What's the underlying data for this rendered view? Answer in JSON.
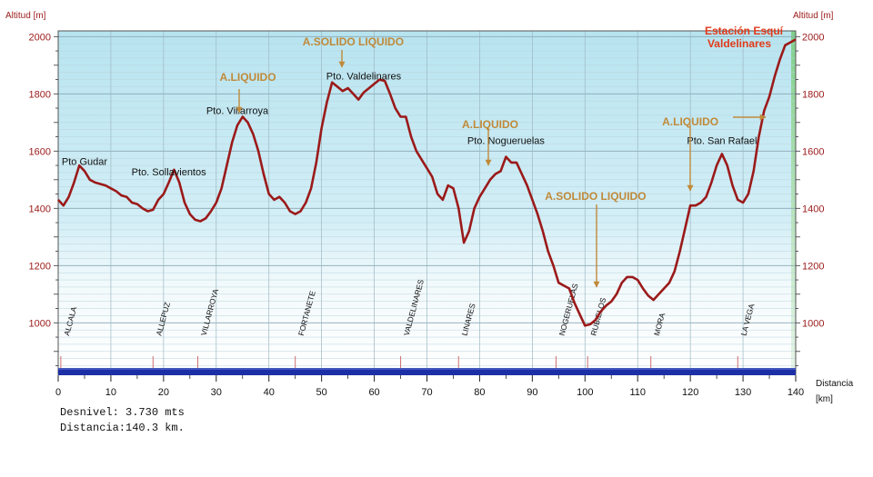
{
  "chart_data": {
    "type": "line",
    "y_axis_label_left": "Altitud [m]",
    "y_axis_label_right": "Altitud [m]",
    "x_axis_label_1": "Distancia",
    "x_axis_label_2": "[km]",
    "xlim": [
      0,
      140
    ],
    "ylim": [
      820,
      2020
    ],
    "x_ticks": [
      "0",
      "10",
      "20",
      "30",
      "40",
      "50",
      "60",
      "70",
      "80",
      "90",
      "100",
      "110",
      "120",
      "130",
      "140"
    ],
    "y_ticks": [
      "1000",
      "1200",
      "1400",
      "1600",
      "1800",
      "2000"
    ],
    "grid": true,
    "series": [
      {
        "color": "#9b1a1a",
        "points": [
          [
            0,
            1430
          ],
          [
            1,
            1410
          ],
          [
            2,
            1440
          ],
          [
            3,
            1490
          ],
          [
            4,
            1550
          ],
          [
            5,
            1530
          ],
          [
            6,
            1500
          ],
          [
            7,
            1490
          ],
          [
            8,
            1485
          ],
          [
            9,
            1480
          ],
          [
            10,
            1470
          ],
          [
            11,
            1460
          ],
          [
            12,
            1445
          ],
          [
            13,
            1440
          ],
          [
            14,
            1420
          ],
          [
            15,
            1415
          ],
          [
            16,
            1400
          ],
          [
            17,
            1390
          ],
          [
            18,
            1395
          ],
          [
            19,
            1430
          ],
          [
            20,
            1450
          ],
          [
            21,
            1490
          ],
          [
            22,
            1535
          ],
          [
            23,
            1490
          ],
          [
            24,
            1420
          ],
          [
            25,
            1380
          ],
          [
            26,
            1360
          ],
          [
            27,
            1355
          ],
          [
            28,
            1365
          ],
          [
            29,
            1390
          ],
          [
            30,
            1420
          ],
          [
            31,
            1470
          ],
          [
            32,
            1550
          ],
          [
            33,
            1630
          ],
          [
            34,
            1690
          ],
          [
            35,
            1720
          ],
          [
            36,
            1700
          ],
          [
            37,
            1660
          ],
          [
            38,
            1600
          ],
          [
            39,
            1520
          ],
          [
            40,
            1450
          ],
          [
            41,
            1430
          ],
          [
            42,
            1440
          ],
          [
            43,
            1420
          ],
          [
            44,
            1390
          ],
          [
            45,
            1380
          ],
          [
            46,
            1390
          ],
          [
            47,
            1420
          ],
          [
            48,
            1470
          ],
          [
            49,
            1560
          ],
          [
            50,
            1680
          ],
          [
            51,
            1770
          ],
          [
            52,
            1840
          ],
          [
            53,
            1825
          ],
          [
            54,
            1810
          ],
          [
            55,
            1820
          ],
          [
            56,
            1800
          ],
          [
            57,
            1780
          ],
          [
            58,
            1805
          ],
          [
            59,
            1820
          ],
          [
            60,
            1835
          ],
          [
            61,
            1850
          ],
          [
            62,
            1845
          ],
          [
            63,
            1800
          ],
          [
            64,
            1750
          ],
          [
            65,
            1720
          ],
          [
            66,
            1720
          ],
          [
            67,
            1650
          ],
          [
            68,
            1600
          ],
          [
            69,
            1570
          ],
          [
            70,
            1540
          ],
          [
            71,
            1510
          ],
          [
            72,
            1450
          ],
          [
            73,
            1430
          ],
          [
            74,
            1480
          ],
          [
            75,
            1470
          ],
          [
            76,
            1400
          ],
          [
            77,
            1280
          ],
          [
            78,
            1320
          ],
          [
            79,
            1400
          ],
          [
            80,
            1440
          ],
          [
            81,
            1470
          ],
          [
            82,
            1500
          ],
          [
            83,
            1520
          ],
          [
            84,
            1530
          ],
          [
            85,
            1580
          ],
          [
            86,
            1560
          ],
          [
            87,
            1560
          ],
          [
            88,
            1520
          ],
          [
            89,
            1480
          ],
          [
            90,
            1430
          ],
          [
            91,
            1380
          ],
          [
            92,
            1320
          ],
          [
            93,
            1250
          ],
          [
            94,
            1200
          ],
          [
            95,
            1140
          ],
          [
            96,
            1130
          ],
          [
            97,
            1120
          ],
          [
            98,
            1070
          ],
          [
            99,
            1030
          ],
          [
            100,
            990
          ],
          [
            101,
            995
          ],
          [
            102,
            1010
          ],
          [
            103,
            1040
          ],
          [
            104,
            1060
          ],
          [
            105,
            1075
          ],
          [
            106,
            1100
          ],
          [
            107,
            1140
          ],
          [
            108,
            1160
          ],
          [
            109,
            1160
          ],
          [
            110,
            1150
          ],
          [
            111,
            1120
          ],
          [
            112,
            1095
          ],
          [
            113,
            1080
          ],
          [
            114,
            1100
          ],
          [
            115,
            1120
          ],
          [
            116,
            1140
          ],
          [
            117,
            1180
          ],
          [
            118,
            1250
          ],
          [
            119,
            1330
          ],
          [
            120,
            1410
          ],
          [
            121,
            1410
          ],
          [
            122,
            1420
          ],
          [
            123,
            1440
          ],
          [
            124,
            1490
          ],
          [
            125,
            1550
          ],
          [
            126,
            1590
          ],
          [
            127,
            1550
          ],
          [
            128,
            1480
          ],
          [
            129,
            1430
          ],
          [
            130,
            1420
          ],
          [
            131,
            1450
          ],
          [
            132,
            1530
          ],
          [
            133,
            1650
          ],
          [
            134,
            1740
          ],
          [
            135,
            1790
          ],
          [
            136,
            1860
          ],
          [
            137,
            1920
          ],
          [
            138,
            1970
          ],
          [
            139,
            1980
          ],
          [
            140,
            1990
          ]
        ]
      }
    ],
    "towns": [
      {
        "name": "ALCALA",
        "x": 0.5
      },
      {
        "name": "ALLEPUZ",
        "x": 18
      },
      {
        "name": "VILLARROYA",
        "x": 26.5
      },
      {
        "name": "FORTANETE",
        "x": 45
      },
      {
        "name": "VALDELINARES",
        "x": 65
      },
      {
        "name": "LINARES",
        "x": 76
      },
      {
        "name": "NOGERUELAS",
        "x": 94.5
      },
      {
        "name": "RUBIELOS",
        "x": 100.5
      },
      {
        "name": "MORA",
        "x": 112.5
      },
      {
        "name": "LA VEGA",
        "x": 129
      }
    ],
    "pass_labels": [
      {
        "text": "Pto Gudar",
        "x": 5,
        "y": 1552
      },
      {
        "text": "Pto. Sollavientos",
        "x": 21,
        "y": 1515
      },
      {
        "text": "Pto. Villarroya",
        "x": 34,
        "y": 1730
      },
      {
        "text": "Pto. Valdelinares",
        "x": 58,
        "y": 1850
      },
      {
        "text": "Pto. Nogueruelas",
        "x": 85,
        "y": 1625
      },
      {
        "text": "Pto. San Rafael",
        "x": 126,
        "y": 1625
      }
    ],
    "supply_labels": [
      {
        "text": "A.LIQUIDO",
        "x": 36,
        "y": 1845
      },
      {
        "text": "A.SOLIDO LIQUIDO",
        "x": 56,
        "y": 1970
      },
      {
        "text": "A.LIQUIDO",
        "x": 82,
        "y": 1680
      },
      {
        "text": "A.SOLIDO LIQUIDO",
        "x": 102,
        "y": 1430
      },
      {
        "text": "A.LIQUIDO",
        "x": 120,
        "y": 1690
      }
    ],
    "annotation_title_1": "Estación Esquí",
    "annotation_title_2": "Valdelinares"
  },
  "footer": {
    "desnivel": "Desnivel: 3.730 mts",
    "distancia": "Distancia:140.3 km."
  }
}
